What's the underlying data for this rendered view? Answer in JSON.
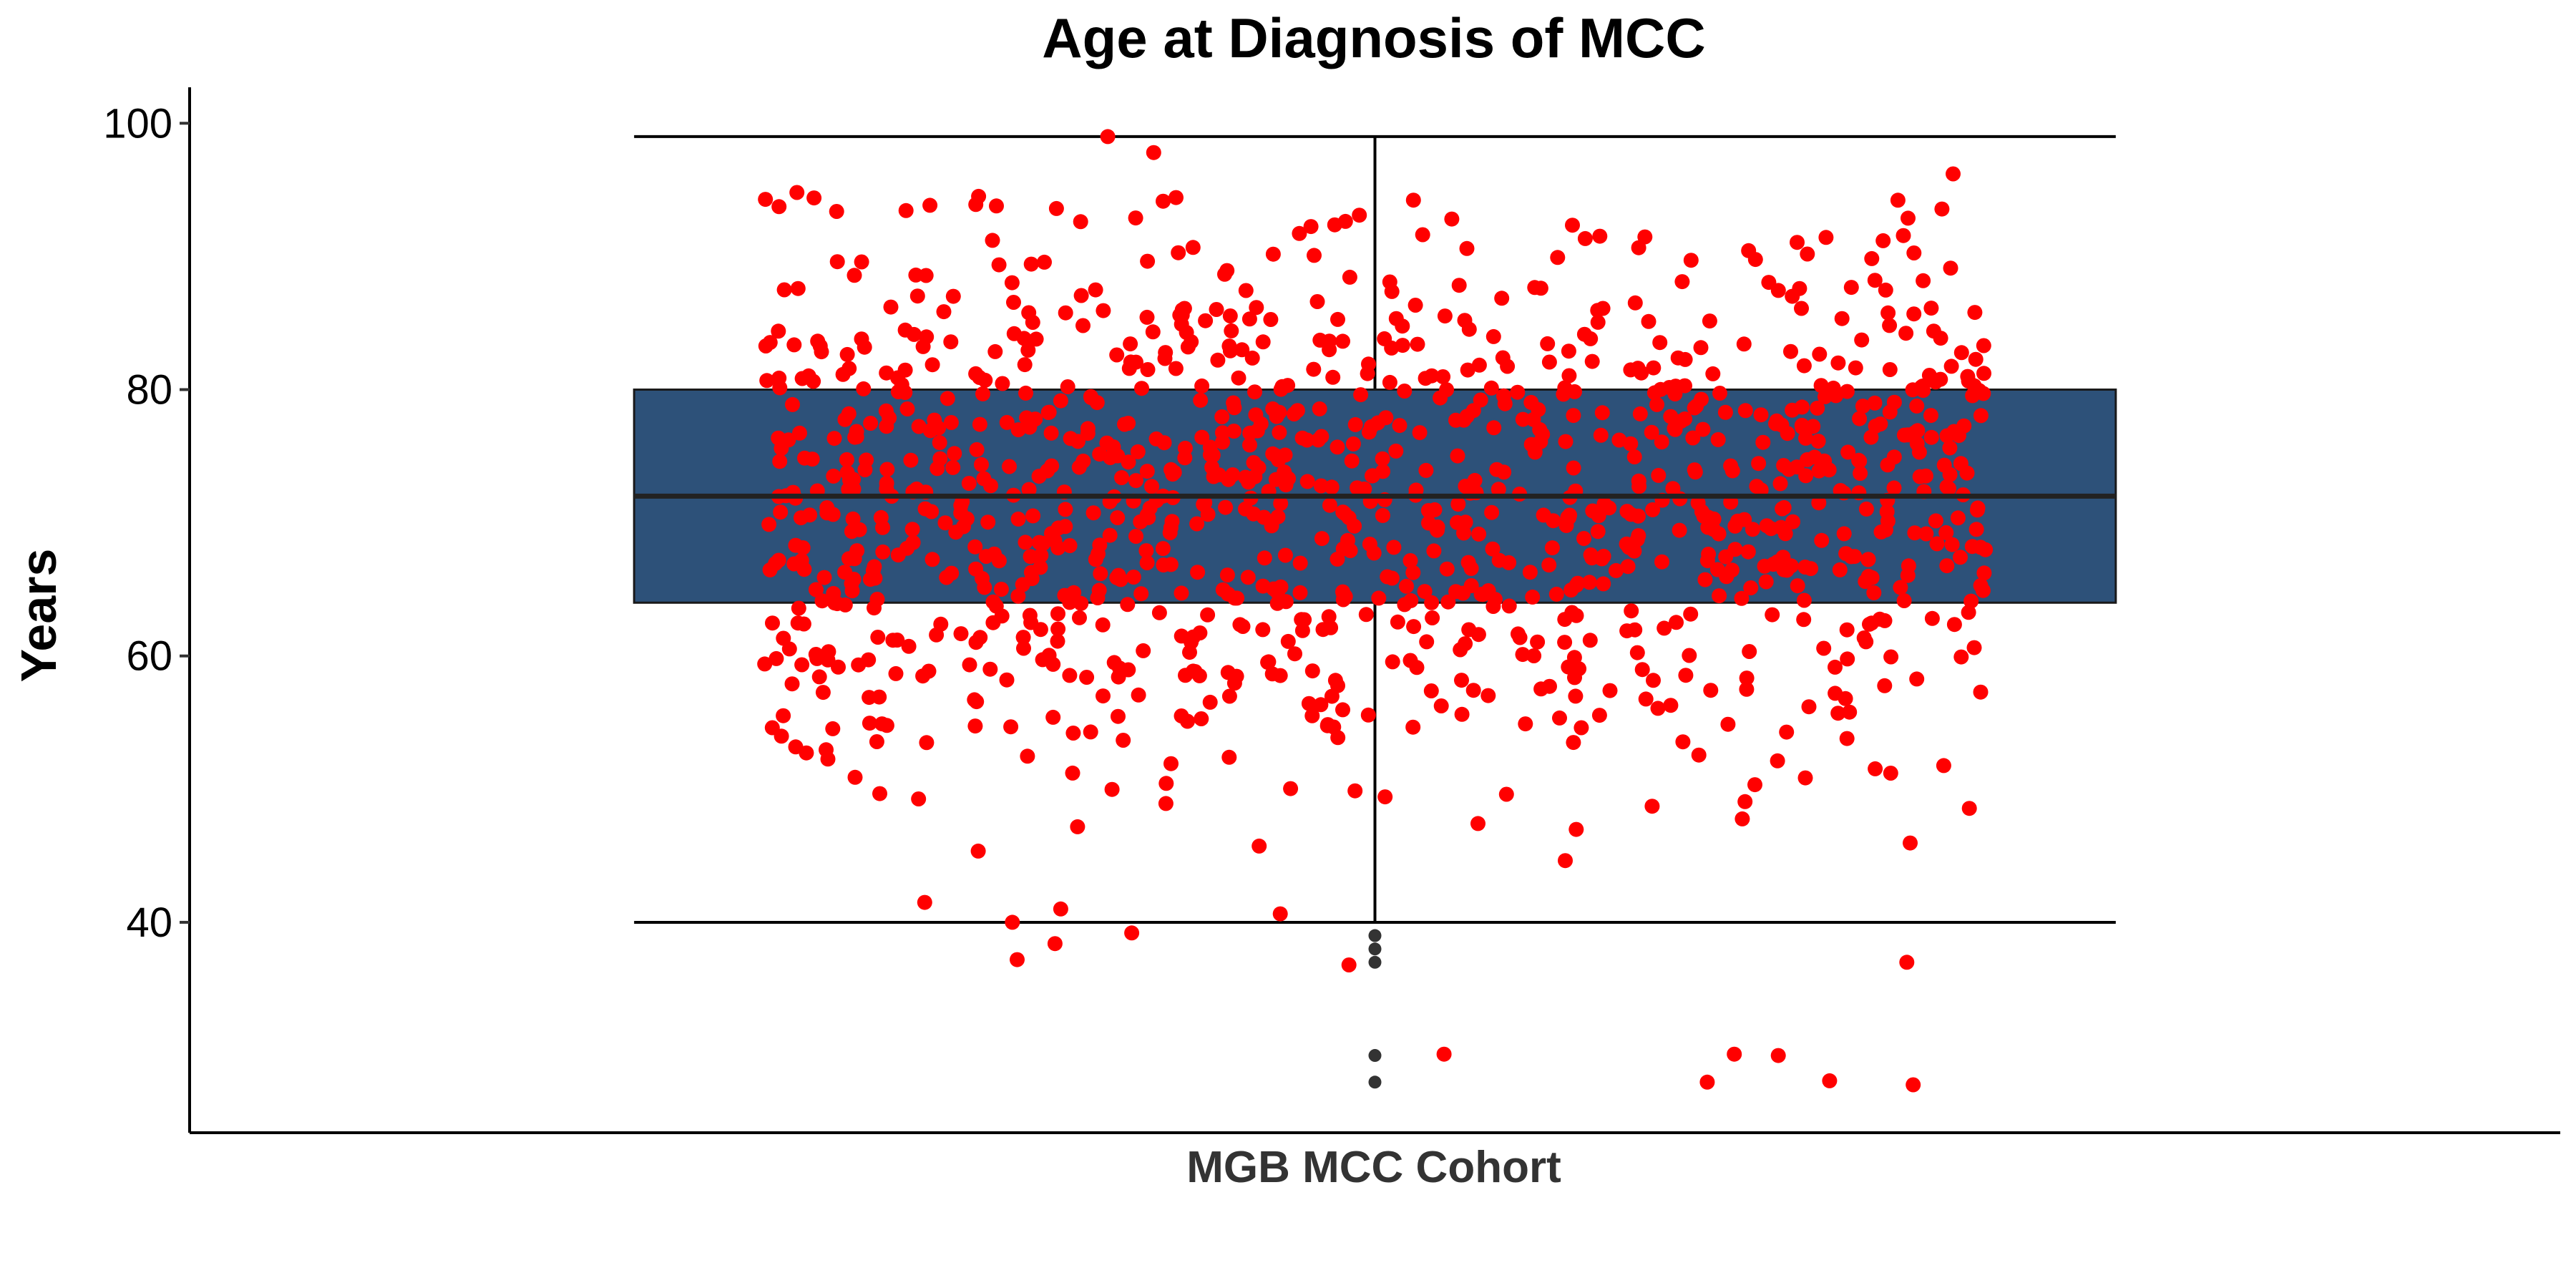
{
  "chart_data": {
    "type": "box",
    "title": "Age at Diagnosis of MCC",
    "xlabel": "",
    "ylabel": "Years",
    "categories": [
      "MGB MCC Cohort"
    ],
    "ylim": [
      24.2,
      102.7
    ],
    "yticks": [
      40,
      60,
      80,
      100
    ],
    "grid": false,
    "box": {
      "category": "MGB MCC Cohort",
      "q1": 64,
      "median": 72,
      "q3": 80,
      "whisker_low": 40,
      "whisker_high": 99,
      "outliers": [
        39,
        38,
        37,
        30,
        28
      ],
      "fill": "#2d5179"
    },
    "jitter_points": {
      "color": "#ff0000",
      "count": 1200,
      "x_spread": 0.46,
      "highlight_values": [
        99,
        97.8,
        96.2,
        94.8,
        93.9,
        93.1,
        41,
        40,
        39.2,
        38.4,
        37.2,
        37,
        36.8,
        30.1,
        30.1,
        30,
        28.1,
        28,
        27.8
      ],
      "note": "individual jittered observations; distribution follows the box summary"
    },
    "colors": {
      "outlier": "#333333",
      "line": "#000000"
    }
  }
}
